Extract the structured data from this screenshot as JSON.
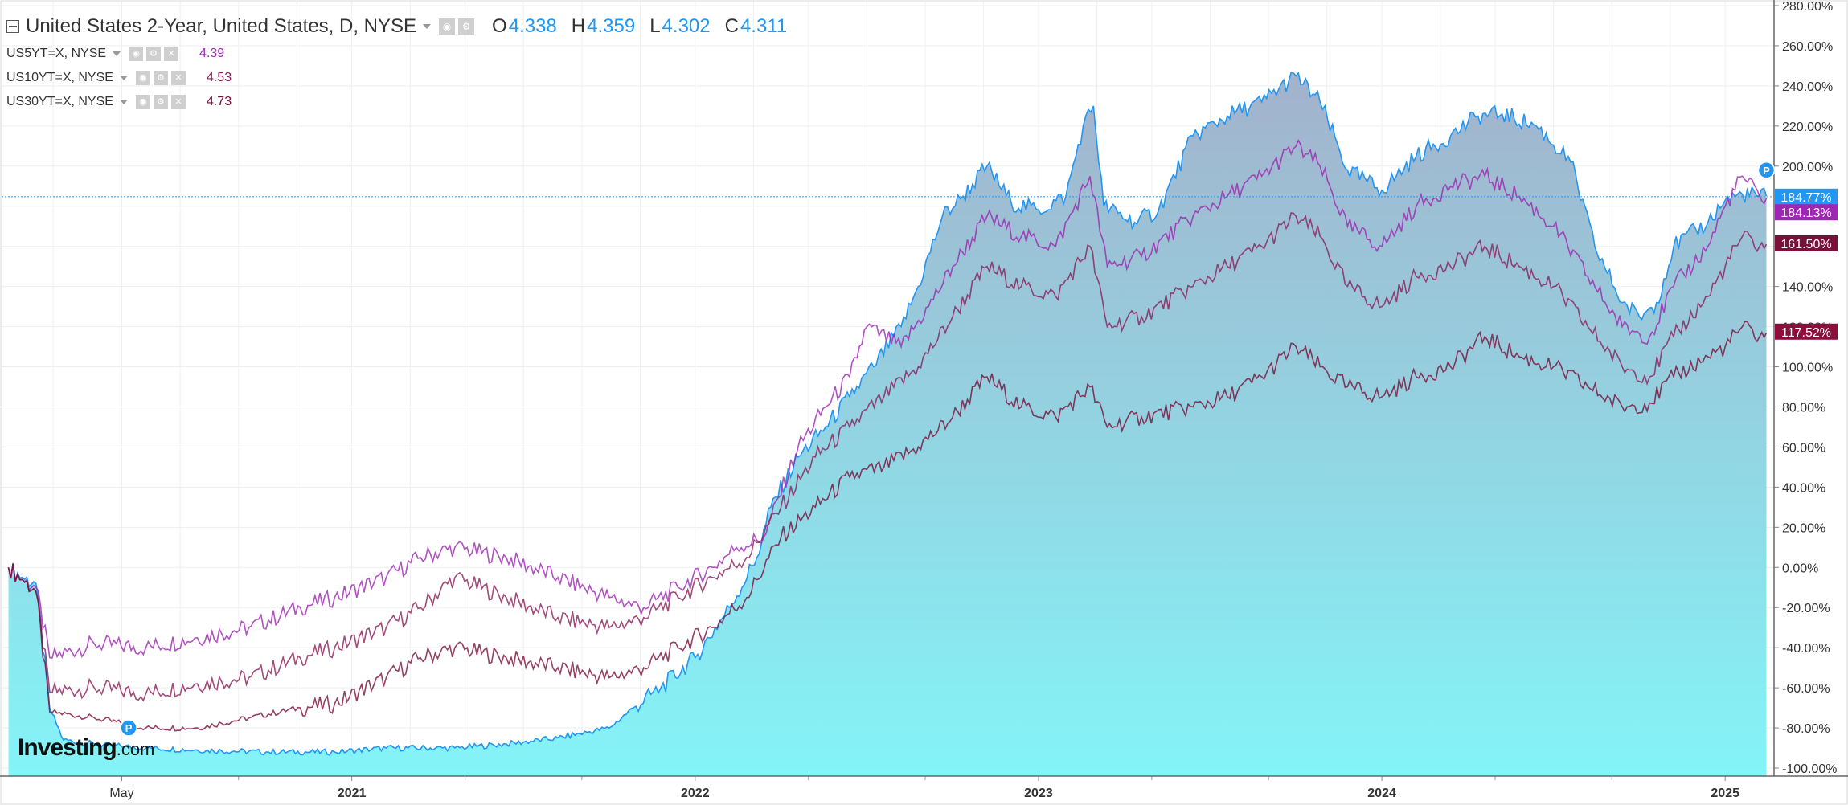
{
  "header": {
    "title": "United States 2-Year, United States, D, NYSE",
    "ohlc": [
      {
        "key": "O",
        "value": "4.338"
      },
      {
        "key": "H",
        "value": "4.359"
      },
      {
        "key": "L",
        "value": "4.302"
      },
      {
        "key": "C",
        "value": "4.311"
      }
    ],
    "comparisons": [
      {
        "symbol": "US5YT=X, NYSE",
        "value": "4.39",
        "color": "#9c27b0"
      },
      {
        "symbol": "US10YT=X, NYSE",
        "value": "4.53",
        "color": "#8b1e5a"
      },
      {
        "symbol": "US30YT=X, NYSE",
        "value": "4.73",
        "color": "#7a0f3a"
      }
    ]
  },
  "logo": {
    "text": "Investing",
    "suffix": ".com"
  },
  "chart_data": {
    "type": "area",
    "x_tick_labels": [
      "May",
      "2021",
      "2022",
      "2023",
      "2024",
      "2025"
    ],
    "y_tick_labels": [
      "280.00%",
      "260.00%",
      "240.00%",
      "220.00%",
      "200.00%",
      "180.00%",
      "160.00%",
      "140.00%",
      "120.00%",
      "100.00%",
      "80.00%",
      "60.00%",
      "40.00%",
      "20.00%",
      "0.00%",
      "-20.00%",
      "-40.00%",
      "-60.00%",
      "-80.00%",
      "-100.00%"
    ],
    "ylim": [
      -104,
      282
    ],
    "grid": true,
    "legend": "top-left",
    "x_unit": "years",
    "series": [
      {
        "name": "United States 2-Year",
        "color": "#2196f3",
        "fill_top": "#a3b2cb",
        "fill_bottom": "#84f4f8",
        "last_label": "184.77%",
        "points": [
          [
            2020.0,
            0
          ],
          [
            2020.04,
            -5
          ],
          [
            2020.08,
            -8
          ],
          [
            2020.12,
            -70
          ],
          [
            2020.16,
            -86
          ],
          [
            2020.25,
            -88
          ],
          [
            2020.4,
            -90
          ],
          [
            2020.55,
            -91
          ],
          [
            2020.75,
            -92
          ],
          [
            2020.95,
            -92
          ],
          [
            2021.1,
            -90
          ],
          [
            2021.3,
            -90
          ],
          [
            2021.45,
            -88
          ],
          [
            2021.6,
            -85
          ],
          [
            2021.75,
            -80
          ],
          [
            2021.82,
            -70
          ],
          [
            2021.9,
            -60
          ],
          [
            2022.0,
            -45
          ],
          [
            2022.1,
            -20
          ],
          [
            2022.18,
            5
          ],
          [
            2022.22,
            30
          ],
          [
            2022.3,
            55
          ],
          [
            2022.38,
            70
          ],
          [
            2022.45,
            85
          ],
          [
            2022.52,
            100
          ],
          [
            2022.6,
            120
          ],
          [
            2022.65,
            140
          ],
          [
            2022.72,
            175
          ],
          [
            2022.78,
            185
          ],
          [
            2022.85,
            200
          ],
          [
            2022.92,
            182
          ],
          [
            2023.0,
            178
          ],
          [
            2023.08,
            185
          ],
          [
            2023.13,
            220
          ],
          [
            2023.16,
            230
          ],
          [
            2023.19,
            180
          ],
          [
            2023.28,
            172
          ],
          [
            2023.35,
            178
          ],
          [
            2023.45,
            215
          ],
          [
            2023.55,
            225
          ],
          [
            2023.65,
            232
          ],
          [
            2023.75,
            245
          ],
          [
            2023.82,
            232
          ],
          [
            2023.9,
            198
          ],
          [
            2024.0,
            188
          ],
          [
            2024.1,
            205
          ],
          [
            2024.2,
            215
          ],
          [
            2024.28,
            225
          ],
          [
            2024.35,
            226
          ],
          [
            2024.45,
            220
          ],
          [
            2024.55,
            202
          ],
          [
            2024.62,
            160
          ],
          [
            2024.7,
            132
          ],
          [
            2024.75,
            125
          ],
          [
            2024.8,
            132
          ],
          [
            2024.85,
            160
          ],
          [
            2024.95,
            172
          ],
          [
            2025.0,
            183
          ],
          [
            2025.05,
            186
          ],
          [
            2025.12,
            185
          ]
        ]
      },
      {
        "name": "US5YT=X",
        "color": "#9c27b0",
        "last_label": "184.13%",
        "points": [
          [
            2020.0,
            0
          ],
          [
            2020.04,
            -6
          ],
          [
            2020.08,
            -10
          ],
          [
            2020.12,
            -45
          ],
          [
            2020.25,
            -38
          ],
          [
            2020.4,
            -40
          ],
          [
            2020.55,
            -35
          ],
          [
            2020.7,
            -30
          ],
          [
            2020.85,
            -20
          ],
          [
            2020.95,
            -15
          ],
          [
            2021.1,
            -5
          ],
          [
            2021.2,
            5
          ],
          [
            2021.3,
            10
          ],
          [
            2021.45,
            5
          ],
          [
            2021.6,
            -5
          ],
          [
            2021.75,
            -15
          ],
          [
            2021.85,
            -20
          ],
          [
            2021.95,
            -10
          ],
          [
            2022.05,
            0
          ],
          [
            2022.12,
            10
          ],
          [
            2022.2,
            15
          ],
          [
            2022.3,
            60
          ],
          [
            2022.38,
            80
          ],
          [
            2022.45,
            95
          ],
          [
            2022.5,
            120
          ],
          [
            2022.6,
            110
          ],
          [
            2022.68,
            130
          ],
          [
            2022.75,
            150
          ],
          [
            2022.85,
            175
          ],
          [
            2022.95,
            165
          ],
          [
            2023.05,
            160
          ],
          [
            2023.15,
            195
          ],
          [
            2023.2,
            150
          ],
          [
            2023.3,
            155
          ],
          [
            2023.45,
            175
          ],
          [
            2023.55,
            185
          ],
          [
            2023.65,
            195
          ],
          [
            2023.75,
            210
          ],
          [
            2023.82,
            200
          ],
          [
            2023.9,
            170
          ],
          [
            2024.0,
            160
          ],
          [
            2024.1,
            180
          ],
          [
            2024.2,
            190
          ],
          [
            2024.3,
            195
          ],
          [
            2024.4,
            185
          ],
          [
            2024.5,
            170
          ],
          [
            2024.6,
            145
          ],
          [
            2024.7,
            120
          ],
          [
            2024.78,
            115
          ],
          [
            2024.85,
            140
          ],
          [
            2024.95,
            160
          ],
          [
            2025.0,
            180
          ],
          [
            2025.05,
            195
          ],
          [
            2025.1,
            185
          ],
          [
            2025.12,
            184
          ]
        ]
      },
      {
        "name": "US10YT=X",
        "color": "#8b1e5a",
        "last_label": "161.50%",
        "points": [
          [
            2020.0,
            0
          ],
          [
            2020.04,
            -6
          ],
          [
            2020.08,
            -12
          ],
          [
            2020.12,
            -62
          ],
          [
            2020.25,
            -60
          ],
          [
            2020.4,
            -63
          ],
          [
            2020.55,
            -58
          ],
          [
            2020.7,
            -55
          ],
          [
            2020.85,
            -45
          ],
          [
            2020.95,
            -40
          ],
          [
            2021.1,
            -30
          ],
          [
            2021.2,
            -20
          ],
          [
            2021.3,
            -5
          ],
          [
            2021.45,
            -15
          ],
          [
            2021.6,
            -25
          ],
          [
            2021.75,
            -30
          ],
          [
            2021.85,
            -25
          ],
          [
            2021.95,
            -15
          ],
          [
            2022.05,
            -5
          ],
          [
            2022.15,
            5
          ],
          [
            2022.25,
            30
          ],
          [
            2022.35,
            55
          ],
          [
            2022.45,
            70
          ],
          [
            2022.55,
            85
          ],
          [
            2022.65,
            100
          ],
          [
            2022.75,
            125
          ],
          [
            2022.85,
            150
          ],
          [
            2022.95,
            140
          ],
          [
            2023.05,
            135
          ],
          [
            2023.15,
            160
          ],
          [
            2023.2,
            120
          ],
          [
            2023.3,
            125
          ],
          [
            2023.45,
            140
          ],
          [
            2023.55,
            150
          ],
          [
            2023.65,
            160
          ],
          [
            2023.75,
            175
          ],
          [
            2023.82,
            165
          ],
          [
            2023.9,
            140
          ],
          [
            2024.0,
            130
          ],
          [
            2024.1,
            145
          ],
          [
            2024.2,
            150
          ],
          [
            2024.3,
            160
          ],
          [
            2024.4,
            150
          ],
          [
            2024.5,
            140
          ],
          [
            2024.6,
            120
          ],
          [
            2024.7,
            100
          ],
          [
            2024.78,
            95
          ],
          [
            2024.85,
            115
          ],
          [
            2024.95,
            135
          ],
          [
            2025.0,
            150
          ],
          [
            2025.05,
            165
          ],
          [
            2025.1,
            160
          ],
          [
            2025.12,
            161
          ]
        ]
      },
      {
        "name": "US30YT=X",
        "color": "#7a0f3a",
        "last_label": "117.52%",
        "points": [
          [
            2020.0,
            0
          ],
          [
            2020.04,
            -6
          ],
          [
            2020.08,
            -12
          ],
          [
            2020.12,
            -72
          ],
          [
            2020.25,
            -75
          ],
          [
            2020.4,
            -80
          ],
          [
            2020.55,
            -80
          ],
          [
            2020.7,
            -75
          ],
          [
            2020.85,
            -70
          ],
          [
            2020.95,
            -68
          ],
          [
            2021.1,
            -55
          ],
          [
            2021.2,
            -45
          ],
          [
            2021.3,
            -40
          ],
          [
            2021.45,
            -45
          ],
          [
            2021.6,
            -50
          ],
          [
            2021.75,
            -55
          ],
          [
            2021.85,
            -50
          ],
          [
            2021.95,
            -40
          ],
          [
            2022.05,
            -30
          ],
          [
            2022.15,
            -15
          ],
          [
            2022.25,
            15
          ],
          [
            2022.35,
            30
          ],
          [
            2022.45,
            45
          ],
          [
            2022.55,
            50
          ],
          [
            2022.65,
            60
          ],
          [
            2022.75,
            75
          ],
          [
            2022.85,
            95
          ],
          [
            2022.95,
            80
          ],
          [
            2023.05,
            75
          ],
          [
            2023.15,
            90
          ],
          [
            2023.2,
            70
          ],
          [
            2023.3,
            75
          ],
          [
            2023.45,
            80
          ],
          [
            2023.55,
            85
          ],
          [
            2023.65,
            95
          ],
          [
            2023.75,
            110
          ],
          [
            2023.82,
            100
          ],
          [
            2023.9,
            90
          ],
          [
            2024.0,
            85
          ],
          [
            2024.1,
            95
          ],
          [
            2024.2,
            100
          ],
          [
            2024.3,
            115
          ],
          [
            2024.4,
            105
          ],
          [
            2024.5,
            100
          ],
          [
            2024.6,
            90
          ],
          [
            2024.7,
            80
          ],
          [
            2024.78,
            82
          ],
          [
            2024.85,
            95
          ],
          [
            2024.95,
            105
          ],
          [
            2025.0,
            110
          ],
          [
            2025.05,
            120
          ],
          [
            2025.1,
            115
          ],
          [
            2025.12,
            117
          ]
        ]
      }
    ],
    "reference_line": {
      "value": 184.77,
      "color": "#2196f3"
    },
    "markers": [
      {
        "text": "P",
        "x": 2020.35,
        "y": -80
      },
      {
        "text": "P",
        "x": 2025.12,
        "y": 198
      }
    ],
    "last_value_labels": [
      {
        "text": "184.77%",
        "y": 184.77,
        "color": "#2196f3"
      },
      {
        "text": "184.13%",
        "y": 177,
        "color": "#9c27b0"
      },
      {
        "text": "161.50%",
        "y": 161.5,
        "color": "#7a0f3a"
      },
      {
        "text": "117.52%",
        "y": 117.52,
        "color": "#8b0f3a"
      }
    ]
  }
}
